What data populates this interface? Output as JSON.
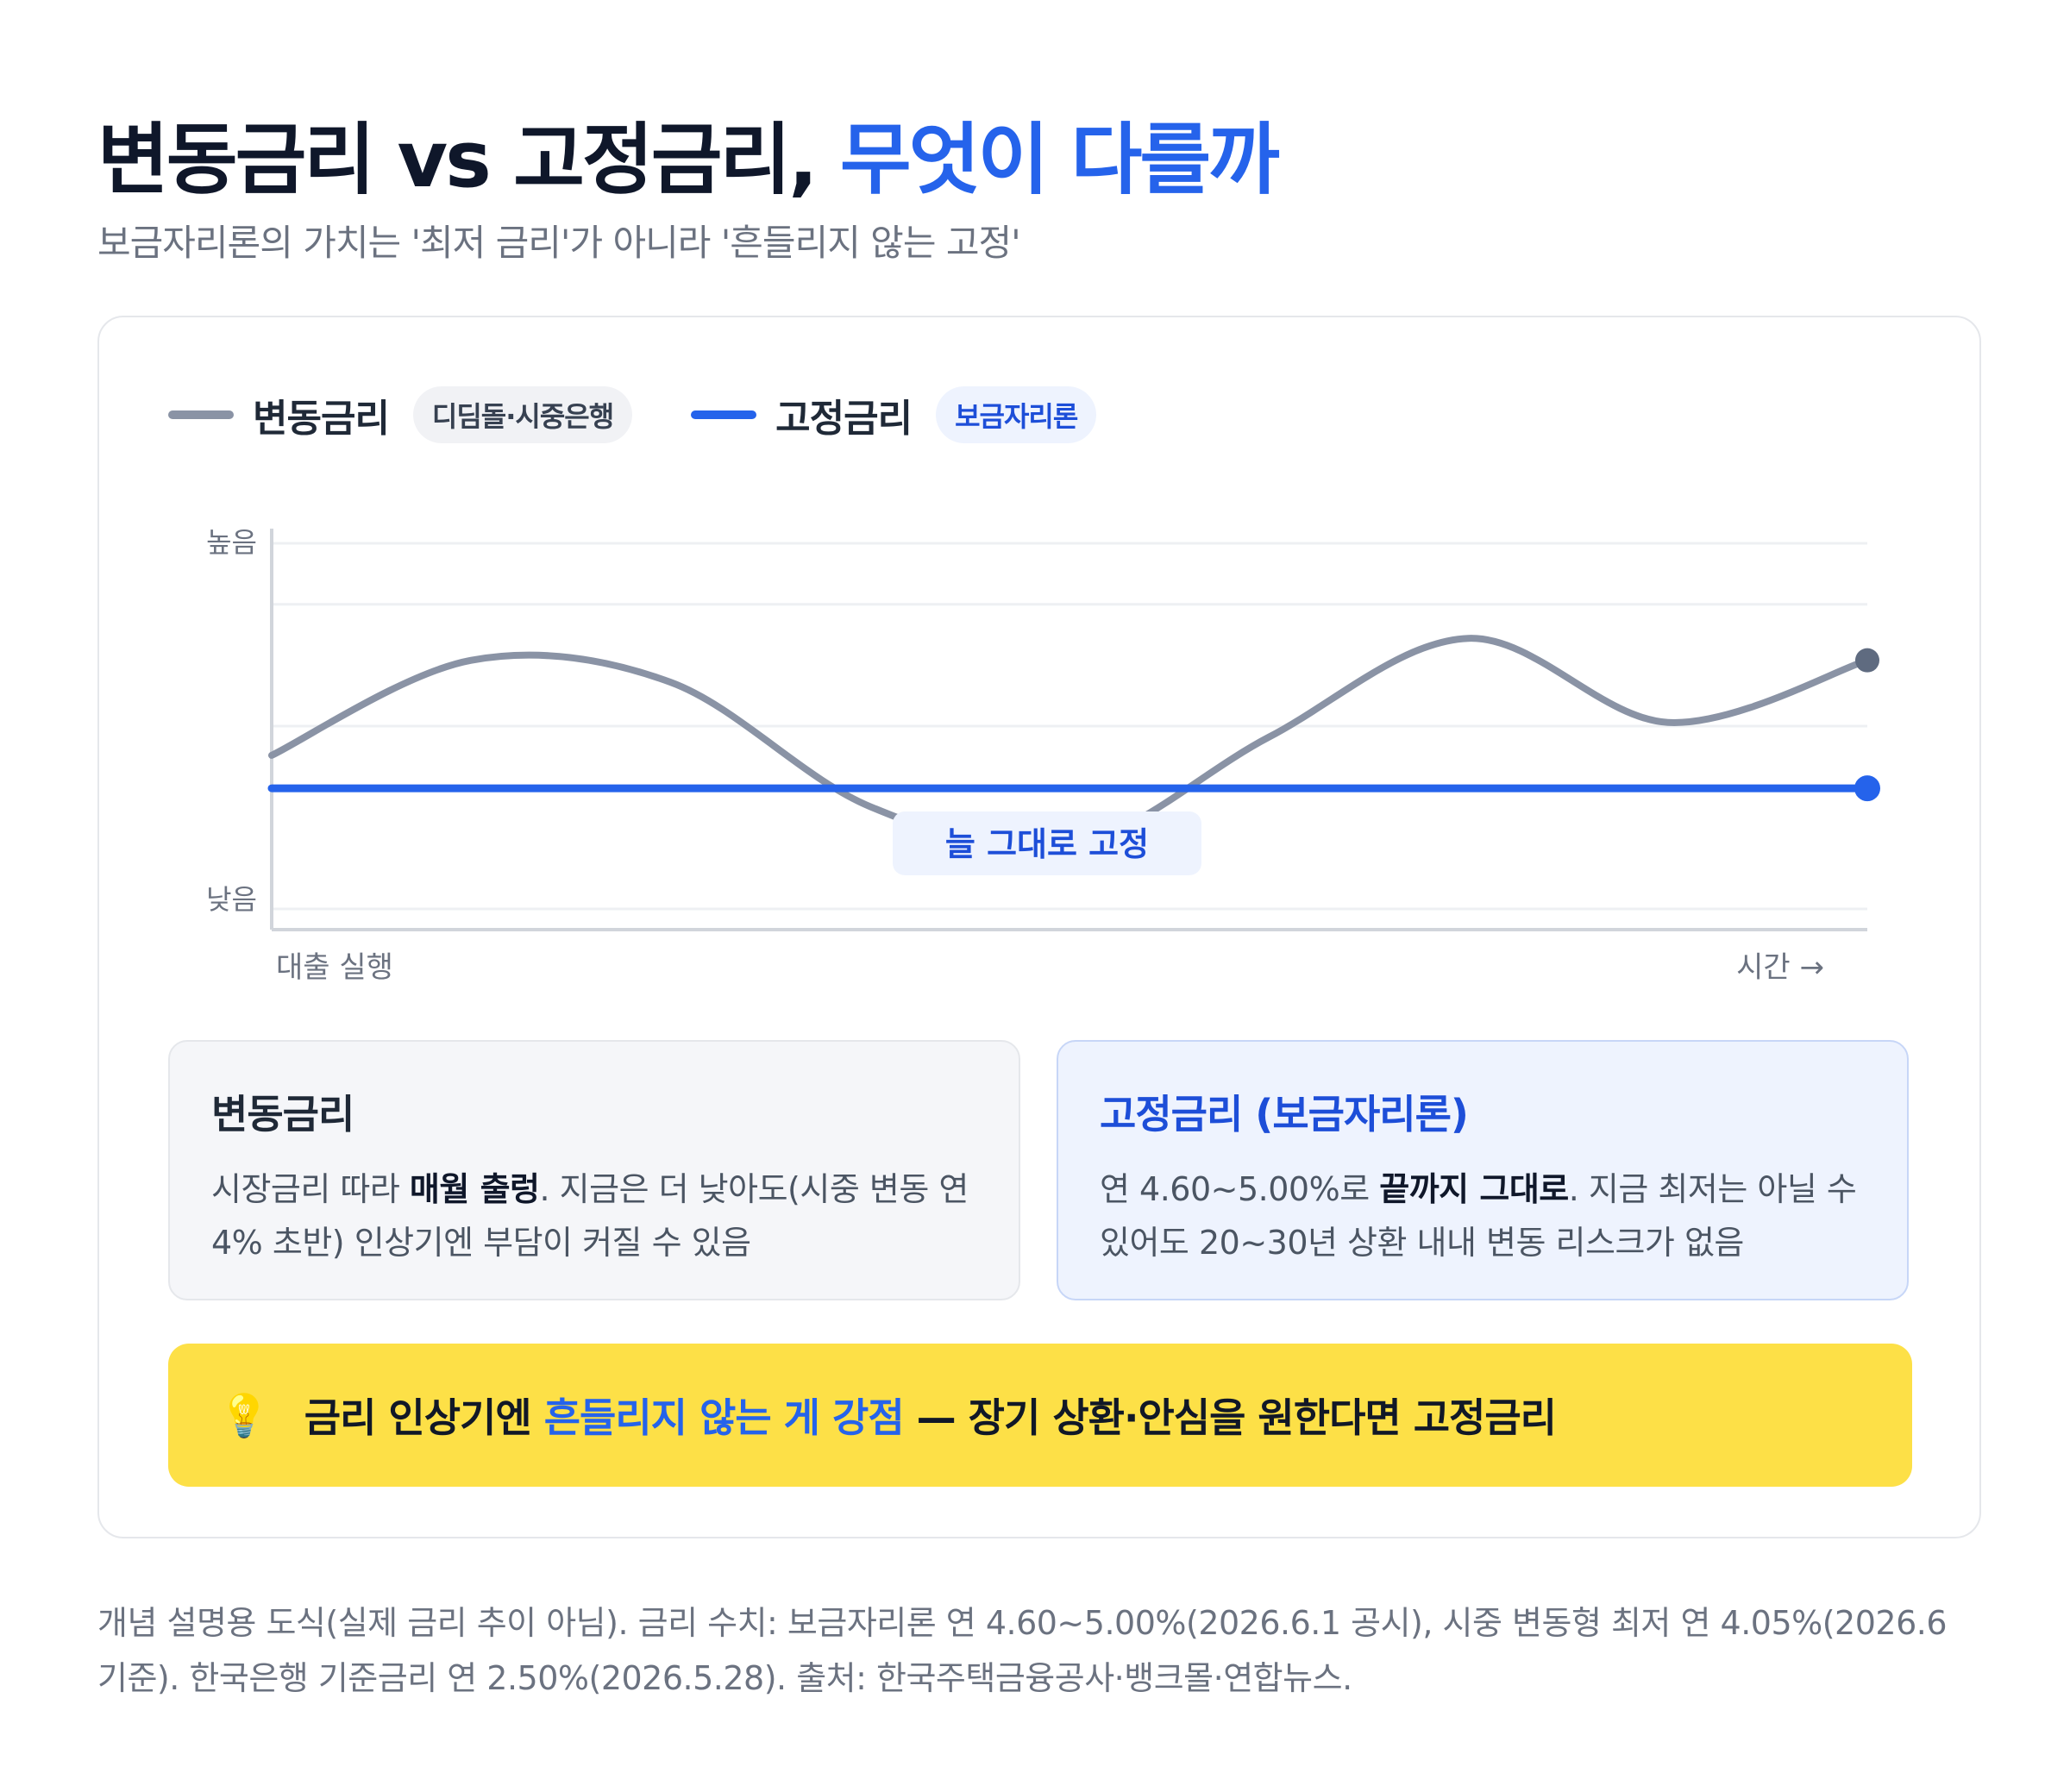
{
  "header": {
    "title_main": "변동금리 vs 고정금리,",
    "title_accent": "무엇이 다를까",
    "subtitle": "보금자리론의 가치는 '최저 금리'가 아니라 '흔들리지 않는 고정'"
  },
  "legend": {
    "variable_label": "변동금리",
    "variable_badge": "디딤돌·시중은행",
    "fixed_label": "고정금리",
    "fixed_badge": "보금자리론"
  },
  "chart_data": {
    "type": "line",
    "title": "",
    "xlabel": "",
    "ylabel": "",
    "x": [
      0,
      0.125,
      0.25,
      0.375,
      0.5,
      0.625,
      0.75,
      0.875,
      1
    ],
    "ylim": [
      0,
      1
    ],
    "y_tick_labels": {
      "high": "높음",
      "low": "낮음"
    },
    "x_tick_labels": {
      "start": "대출 실행",
      "end": "시간 →"
    },
    "series": [
      {
        "name": "변동금리",
        "color": "#8a93a5",
        "values": [
          0.42,
          0.68,
          0.62,
          0.28,
          0.17,
          0.47,
          0.74,
          0.51,
          0.68
        ]
      },
      {
        "name": "고정금리",
        "color": "#2563eb",
        "values": [
          0.33,
          0.33,
          0.33,
          0.33,
          0.33,
          0.33,
          0.33,
          0.33,
          0.33
        ]
      }
    ],
    "annotation": "늘 그대로 고정",
    "grid": true
  },
  "cards": {
    "variable": {
      "title": "변동금리",
      "text_1": "시장금리 따라 ",
      "bold": "매월 출렁",
      "text_2": ". 지금은 더 낮아도(시중 변동 연 4% 초반) 인상기엔 부담이 커질 수 있음"
    },
    "fixed": {
      "title": "고정금리 (보금자리론)",
      "text_1": "연 4.60~5.00%로 ",
      "bold": "끝까지 그대로",
      "text_2": ". 지금 최저는 아닐 수 있어도 20~30년 상환 내내 변동 리스크가 없음"
    }
  },
  "banner": {
    "icon": "lightbulb-icon",
    "text_1": "금리 인상기엔 ",
    "highlight": "흔들리지 않는 게 강점",
    "text_2": " — 장기 상환·안심을 원한다면 고정금리"
  },
  "footnote": "개념 설명용 도식(실제 금리 추이 아님). 금리 수치: 보금자리론 연 4.60~5.00%(2026.6.1 공시), 시중 변동형 최저 연 4.05%(2026.6 기준). 한국은행 기준금리 연 2.50%(2026.5.28). 출처: 한국주택금융공사·뱅크몰·연합뉴스."
}
